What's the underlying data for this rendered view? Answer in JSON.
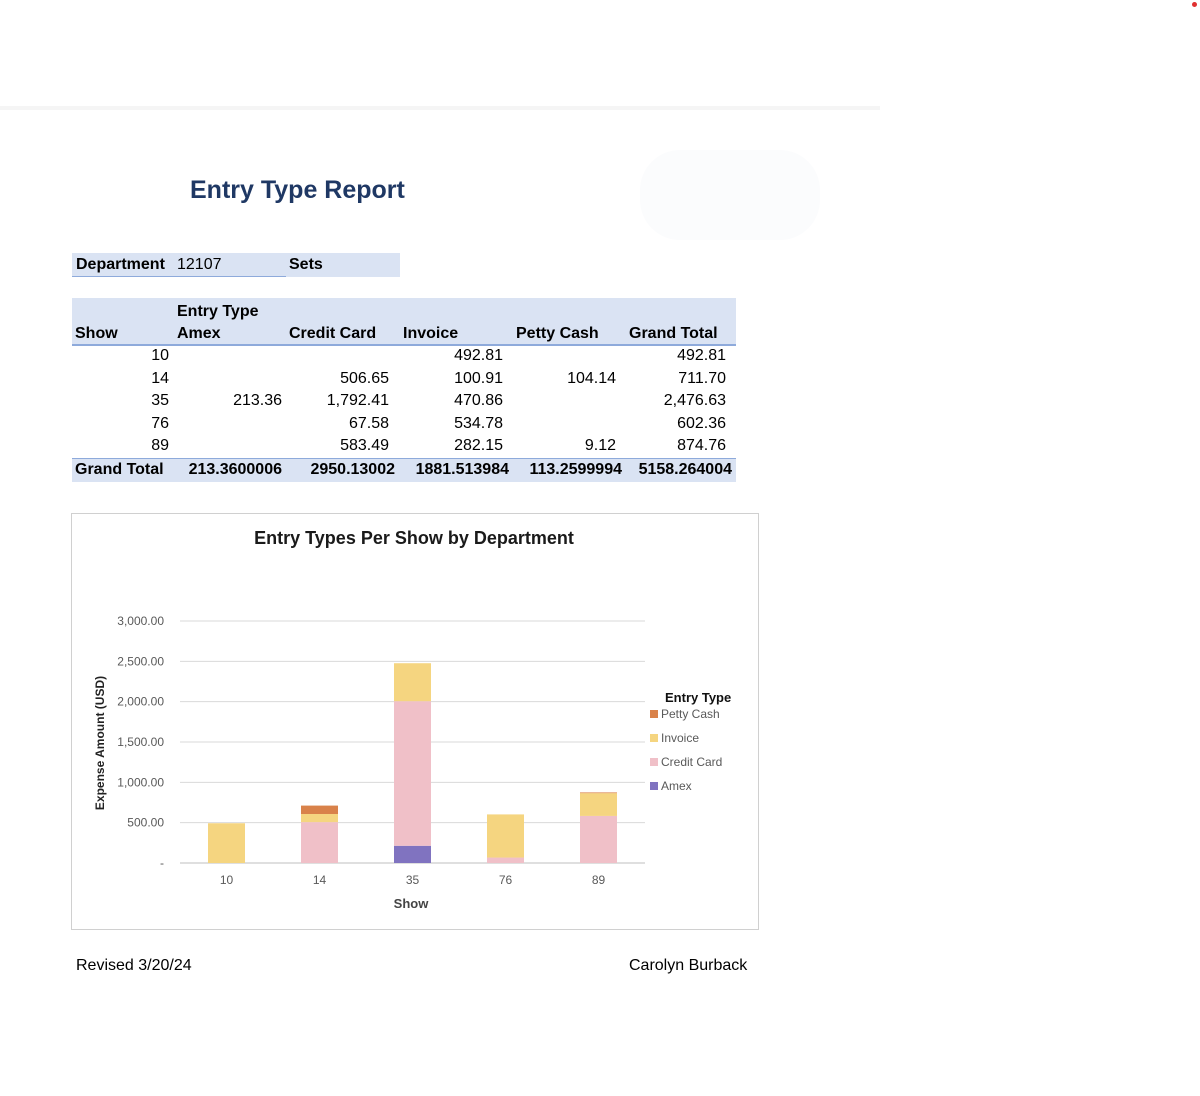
{
  "report": {
    "title": "Entry Type Report",
    "department_label": "Department",
    "department_value": "12107",
    "department_name": "Sets"
  },
  "pivot": {
    "row_header": "Show",
    "column_group_header": "Entry Type",
    "columns": [
      "Amex",
      "Credit Card",
      "Invoice",
      "Petty Cash",
      "Grand Total"
    ],
    "rows": [
      {
        "show": "10",
        "cells": [
          "",
          "",
          "492.81",
          "",
          "492.81"
        ]
      },
      {
        "show": "14",
        "cells": [
          "",
          "506.65",
          "100.91",
          "104.14",
          "711.70"
        ]
      },
      {
        "show": "35",
        "cells": [
          "213.36",
          "1,792.41",
          "470.86",
          "",
          "2,476.63"
        ]
      },
      {
        "show": "76",
        "cells": [
          "",
          "67.58",
          "534.78",
          "",
          "602.36"
        ]
      },
      {
        "show": "89",
        "cells": [
          "",
          "583.49",
          "282.15",
          "9.12",
          "874.76"
        ]
      }
    ],
    "total_label": "Grand Total",
    "totals": [
      "213.3600006",
      "2950.13002",
      "1881.513984",
      "113.2599994",
      "5158.264004"
    ]
  },
  "chart_data": {
    "type": "bar",
    "stacked": true,
    "title": "Entry Types Per Show by Department",
    "xlabel": "Show",
    "ylabel": "Expense Amount (USD)",
    "categories": [
      "10",
      "14",
      "35",
      "76",
      "89"
    ],
    "y_ticks": [
      "-",
      "500.00",
      "1,000.00",
      "1,500.00",
      "2,000.00",
      "2,500.00",
      "3,000.00"
    ],
    "ylim": [
      0,
      3000
    ],
    "grid": true,
    "legend_title": "Entry Type",
    "legend_position": "right",
    "legend_order": [
      "Petty Cash",
      "Invoice",
      "Credit Card",
      "Amex"
    ],
    "series": [
      {
        "name": "Amex",
        "color": "#8073c0",
        "values": [
          0,
          0,
          213.36,
          0,
          0
        ]
      },
      {
        "name": "Credit Card",
        "color": "#f0c0c8",
        "values": [
          0,
          506.65,
          1792.41,
          67.58,
          583.49
        ]
      },
      {
        "name": "Invoice",
        "color": "#f5d580",
        "values": [
          492.81,
          100.91,
          470.86,
          534.78,
          282.15
        ]
      },
      {
        "name": "Petty Cash",
        "color": "#d9824a",
        "values": [
          0,
          104.14,
          0,
          0,
          9.12
        ]
      }
    ]
  },
  "footer": {
    "revised": "Revised 3/20/24",
    "author": "Carolyn Burback"
  }
}
